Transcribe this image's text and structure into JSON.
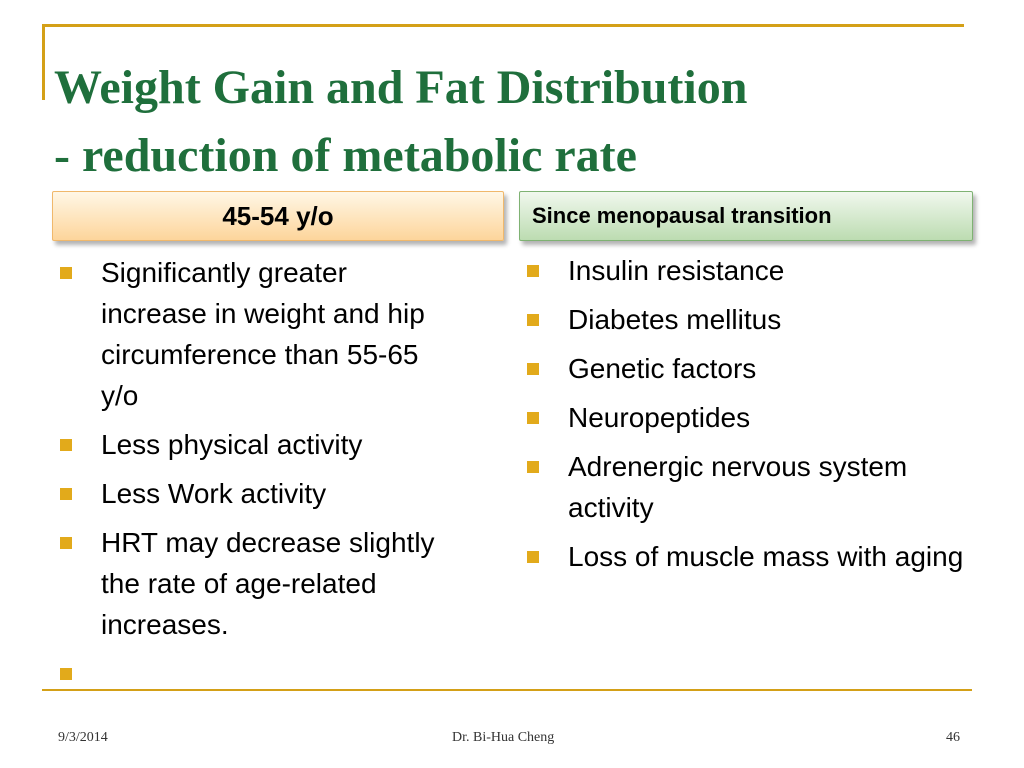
{
  "title": {
    "line1": "Weight Gain and Fat Distribution",
    "line2": "- reduction of metabolic rate"
  },
  "left_column": {
    "header": "45-54 y/o",
    "items": [
      "Significantly greater increase in weight and hip circumference than 55-65 y/o",
      "Less  physical activity",
      "Less Work activity",
      " HRT may decrease slightly the rate of age-related increases.",
      ""
    ]
  },
  "right_column": {
    "header": "Since menopausal transition",
    "items": [
      "Insulin resistance",
      "Diabetes mellitus",
      "Genetic factors",
      "Neuropeptides",
      "Adrenergic nervous system activity",
      "Loss of muscle mass with aging"
    ]
  },
  "footer": {
    "date": "9/3/2014",
    "author": "Dr. Bi-Hua Cheng",
    "page": "46"
  },
  "colors": {
    "title": "#1f6f3c",
    "accent_line": "#d4a017",
    "bullet": "#e2aa1b",
    "left_header_fill": "#fdd59b",
    "right_header_fill": "#bcdcb1"
  }
}
